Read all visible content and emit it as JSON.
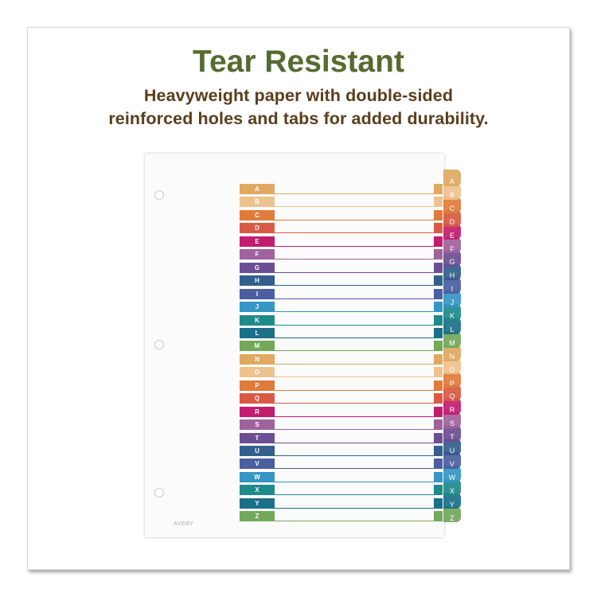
{
  "headline": "Tear Resistant",
  "subline_1": "Heavyweight paper with double-sided",
  "subline_2": "reinforced holes and tabs for added durability.",
  "logo_text": "AVERY",
  "tabs": [
    "A",
    "B",
    "C",
    "D",
    "E",
    "F",
    "G",
    "H",
    "I",
    "J",
    "K",
    "L",
    "M",
    "N",
    "O",
    "P",
    "Q",
    "R",
    "S",
    "T",
    "U",
    "V",
    "W",
    "X",
    "Y",
    "Z"
  ],
  "tab_colors": [
    "#e0a860",
    "#eec28e",
    "#e07b3a",
    "#d85a44",
    "#c21d6e",
    "#a0629c",
    "#6c4e94",
    "#325f8c",
    "#4a5ea0",
    "#3596c4",
    "#1f8a8a",
    "#1a7088",
    "#72a85a"
  ]
}
